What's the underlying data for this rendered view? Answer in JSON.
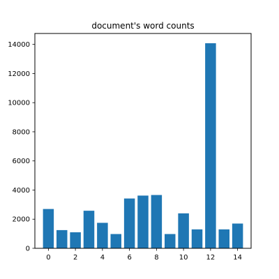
{
  "chart_data": {
    "type": "bar",
    "title": "document's word counts",
    "xlabel": "",
    "ylabel": "",
    "x": [
      0,
      1,
      2,
      3,
      4,
      5,
      6,
      7,
      8,
      9,
      10,
      11,
      12,
      13,
      14
    ],
    "values": [
      2700,
      1250,
      1100,
      2580,
      1750,
      980,
      3420,
      3620,
      3660,
      980,
      2400,
      1300,
      14080,
      1300,
      1700
    ],
    "xlim": [
      -1,
      15
    ],
    "ylim": [
      0,
      14750
    ],
    "xticks": [
      0,
      2,
      4,
      6,
      8,
      10,
      12,
      14
    ],
    "yticks": [
      0,
      2000,
      4000,
      6000,
      8000,
      10000,
      12000,
      14000
    ],
    "grid": false,
    "bar_color": "#1f77b4"
  }
}
